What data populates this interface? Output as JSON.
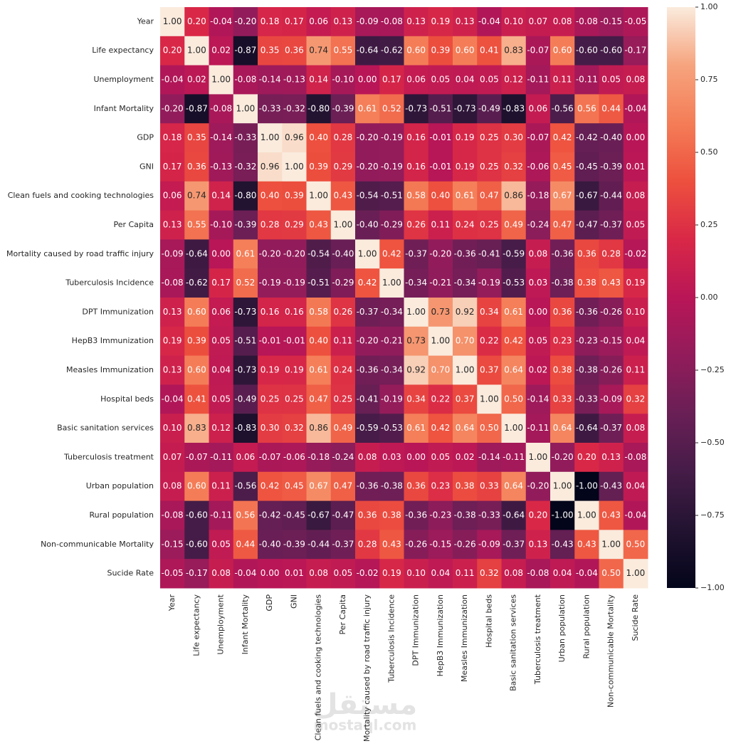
{
  "chart_data": {
    "type": "heatmap",
    "x_categories": [
      "Year",
      "Life expectancy",
      "Unemployment",
      "Infant Mortality",
      "GDP",
      "GNI",
      "Clean fuels and cooking technologies",
      "Per Capita",
      "Mortality caused by road traffic injury",
      "Tuberculosis Incidence",
      "DPT Immunization",
      "HepB3 Immunization",
      "Measles Immunization",
      "Hospital beds",
      "Basic sanitation services",
      "Tuberculosis treatment",
      "Urban population",
      "Rural population",
      "Non-communicable Mortality",
      "Sucide Rate"
    ],
    "y_categories": [
      "Year",
      "Life expectancy",
      "Unemployment",
      "Infant Mortality",
      "GDP",
      "GNI",
      "Clean fuels and cooking technologies",
      "Per Capita",
      "Mortality caused by road traffic injury",
      "Tuberculosis Incidence",
      "DPT Immunization",
      "HepB3 Immunization",
      "Measles Immunization",
      "Hospital beds",
      "Basic sanitation services",
      "Tuberculosis treatment",
      "Urban population",
      "Rural population",
      "Non-communicable Mortality",
      "Sucide Rate"
    ],
    "values": [
      [
        1,
        0.2,
        -0.04,
        -0.2,
        0.18,
        0.17,
        0.06,
        0.13,
        -0.09,
        -0.08,
        0.13,
        0.19,
        0.13,
        -0.04,
        0.1,
        0.07,
        0.08,
        -0.08,
        -0.15,
        -0.05
      ],
      [
        0.2,
        1,
        0.02,
        -0.87,
        0.35,
        0.36,
        0.74,
        0.55,
        -0.64,
        -0.62,
        0.6,
        0.39,
        0.6,
        0.41,
        0.83,
        -0.07,
        0.6,
        -0.6,
        -0.6,
        -0.17
      ],
      [
        -0.04,
        0.02,
        1,
        -0.08,
        -0.14,
        -0.13,
        0.14,
        -0.1,
        0,
        0.17,
        0.06,
        0.05,
        0.04,
        0.05,
        0.12,
        -0.11,
        0.11,
        -0.11,
        0.05,
        0.08
      ],
      [
        -0.2,
        -0.87,
        -0.08,
        1,
        -0.33,
        -0.32,
        -0.8,
        -0.39,
        0.61,
        0.52,
        -0.73,
        -0.51,
        -0.73,
        -0.49,
        -0.83,
        0.06,
        -0.56,
        0.56,
        0.44,
        -0.04
      ],
      [
        0.18,
        0.35,
        -0.14,
        -0.33,
        1,
        0.96,
        0.4,
        0.28,
        -0.2,
        -0.19,
        0.16,
        -0.01,
        0.19,
        0.25,
        0.3,
        -0.07,
        0.42,
        -0.42,
        -0.4,
        0
      ],
      [
        0.17,
        0.36,
        -0.13,
        -0.32,
        0.96,
        1,
        0.39,
        0.29,
        -0.2,
        -0.19,
        0.16,
        -0.01,
        0.19,
        0.25,
        0.32,
        -0.06,
        0.45,
        -0.45,
        -0.39,
        0.01
      ],
      [
        0.06,
        0.74,
        0.14,
        -0.8,
        0.4,
        0.39,
        1,
        0.43,
        -0.54,
        -0.51,
        0.58,
        0.4,
        0.61,
        0.47,
        0.86,
        -0.18,
        0.67,
        -0.67,
        -0.44,
        0.08
      ],
      [
        0.13,
        0.55,
        -0.1,
        -0.39,
        0.28,
        0.29,
        0.43,
        1,
        -0.4,
        -0.29,
        0.26,
        0.11,
        0.24,
        0.25,
        0.49,
        -0.24,
        0.47,
        -0.47,
        -0.37,
        0.05
      ],
      [
        -0.09,
        -0.64,
        0,
        0.61,
        -0.2,
        -0.2,
        -0.54,
        -0.4,
        1,
        0.42,
        -0.37,
        -0.2,
        -0.36,
        -0.41,
        -0.59,
        0.08,
        -0.36,
        0.36,
        0.28,
        -0.02
      ],
      [
        -0.08,
        -0.62,
        0.17,
        0.52,
        -0.19,
        -0.19,
        -0.51,
        -0.29,
        0.42,
        1,
        -0.34,
        -0.21,
        -0.34,
        -0.19,
        -0.53,
        0.03,
        -0.38,
        0.38,
        0.43,
        0.19
      ],
      [
        0.13,
        0.6,
        0.06,
        -0.73,
        0.16,
        0.16,
        0.58,
        0.26,
        -0.37,
        -0.34,
        1,
        0.73,
        0.92,
        0.34,
        0.61,
        0,
        0.36,
        -0.36,
        -0.26,
        0.1
      ],
      [
        0.19,
        0.39,
        0.05,
        -0.51,
        -0.01,
        -0.01,
        0.4,
        0.11,
        -0.2,
        -0.21,
        0.73,
        1,
        0.7,
        0.22,
        0.42,
        0.05,
        0.23,
        -0.23,
        -0.15,
        0.04
      ],
      [
        0.13,
        0.6,
        0.04,
        -0.73,
        0.19,
        0.19,
        0.61,
        0.24,
        -0.36,
        -0.34,
        0.92,
        0.7,
        1,
        0.37,
        0.64,
        0.02,
        0.38,
        -0.38,
        -0.26,
        0.11
      ],
      [
        -0.04,
        0.41,
        0.05,
        -0.49,
        0.25,
        0.25,
        0.47,
        0.25,
        -0.41,
        -0.19,
        0.34,
        0.22,
        0.37,
        1,
        0.5,
        -0.14,
        0.33,
        -0.33,
        -0.09,
        0.32
      ],
      [
        0.1,
        0.83,
        0.12,
        -0.83,
        0.3,
        0.32,
        0.86,
        0.49,
        -0.59,
        -0.53,
        0.61,
        0.42,
        0.64,
        0.5,
        1,
        -0.11,
        0.64,
        -0.64,
        -0.37,
        0.08
      ],
      [
        0.07,
        -0.07,
        -0.11,
        0.06,
        -0.07,
        -0.06,
        -0.18,
        -0.24,
        0.08,
        0.03,
        0,
        0.05,
        0.02,
        -0.14,
        -0.11,
        1,
        -0.2,
        0.2,
        0.13,
        -0.08
      ],
      [
        0.08,
        0.6,
        0.11,
        -0.56,
        0.42,
        0.45,
        0.67,
        0.47,
        -0.36,
        -0.38,
        0.36,
        0.23,
        0.38,
        0.33,
        0.64,
        -0.2,
        1,
        -1,
        -0.43,
        0.04
      ],
      [
        -0.08,
        -0.6,
        -0.11,
        0.56,
        -0.42,
        -0.45,
        -0.67,
        -0.47,
        0.36,
        0.38,
        -0.36,
        -0.23,
        -0.38,
        -0.33,
        -0.64,
        0.2,
        -1,
        1,
        0.43,
        -0.04
      ],
      [
        -0.15,
        -0.6,
        0.05,
        0.44,
        -0.4,
        -0.39,
        -0.44,
        -0.37,
        0.28,
        0.43,
        -0.26,
        -0.15,
        -0.26,
        -0.09,
        -0.37,
        0.13,
        -0.43,
        0.43,
        1,
        0.5
      ],
      [
        -0.05,
        -0.17,
        0.08,
        -0.04,
        0,
        0.01,
        0.08,
        0.05,
        -0.02,
        0.19,
        0.1,
        0.04,
        0.11,
        0.32,
        0.08,
        -0.08,
        0.04,
        -0.04,
        0.5,
        1
      ]
    ],
    "value_labels": [
      [
        "1.00",
        "0.20",
        "-0.04",
        "-0.20",
        "0.18",
        "0.17",
        "0.06",
        "0.13",
        "-0.09",
        "-0.08",
        "0.13",
        "0.19",
        "0.13",
        "-0.04",
        "0.10",
        "0.07",
        "0.08",
        "-0.08",
        "-0.15",
        "-0.05"
      ],
      [
        "0.20",
        "1.00",
        "0.02",
        "-0.87",
        "0.35",
        "0.36",
        "0.74",
        "0.55",
        "-0.64",
        "-0.62",
        "0.60",
        "0.39",
        "0.60",
        "0.41",
        "0.83",
        "-0.07",
        "0.60",
        "-0.60",
        "-0.60",
        "-0.17"
      ],
      [
        "-0.04",
        "0.02",
        "1.00",
        "-0.08",
        "-0.14",
        "-0.13",
        "0.14",
        "-0.10",
        "0.00",
        "0.17",
        "0.06",
        "0.05",
        "0.04",
        "0.05",
        "0.12",
        "-0.11",
        "0.11",
        "-0.11",
        "0.05",
        "0.08"
      ],
      [
        "-0.20",
        "-0.87",
        "-0.08",
        "1.00",
        "-0.33",
        "-0.32",
        "-0.80",
        "-0.39",
        "0.61",
        "0.52",
        "-0.73",
        "-0.51",
        "-0.73",
        "-0.49",
        "-0.83",
        "0.06",
        "-0.56",
        "0.56",
        "0.44",
        "-0.04"
      ],
      [
        "0.18",
        "0.35",
        "-0.14",
        "-0.33",
        "1.00",
        "0.96",
        "0.40",
        "0.28",
        "-0.20",
        "-0.19",
        "0.16",
        "-0.01",
        "0.19",
        "0.25",
        "0.30",
        "-0.07",
        "0.42",
        "-0.42",
        "-0.40",
        "0.00"
      ],
      [
        "0.17",
        "0.36",
        "-0.13",
        "-0.32",
        "0.96",
        "1.00",
        "0.39",
        "0.29",
        "-0.20",
        "-0.19",
        "0.16",
        "-0.01",
        "0.19",
        "0.25",
        "0.32",
        "-0.06",
        "0.45",
        "-0.45",
        "-0.39",
        "0.01"
      ],
      [
        "0.06",
        "0.74",
        "0.14",
        "-0.80",
        "0.40",
        "0.39",
        "1.00",
        "0.43",
        "-0.54",
        "-0.51",
        "0.58",
        "0.40",
        "0.61",
        "0.47",
        "0.86",
        "-0.18",
        "0.67",
        "-0.67",
        "-0.44",
        "0.08"
      ],
      [
        "0.13",
        "0.55",
        "-0.10",
        "-0.39",
        "0.28",
        "0.29",
        "0.43",
        "1.00",
        "-0.40",
        "-0.29",
        "0.26",
        "0.11",
        "0.24",
        "0.25",
        "0.49",
        "-0.24",
        "0.47",
        "-0.47",
        "-0.37",
        "0.05"
      ],
      [
        "-0.09",
        "-0.64",
        "0.00",
        "0.61",
        "-0.20",
        "-0.20",
        "-0.54",
        "-0.40",
        "1.00",
        "0.42",
        "-0.37",
        "-0.20",
        "-0.36",
        "-0.41",
        "-0.59",
        "0.08",
        "-0.36",
        "0.36",
        "0.28",
        "-0.02"
      ],
      [
        "-0.08",
        "-0.62",
        "0.17",
        "0.52",
        "-0.19",
        "-0.19",
        "-0.51",
        "-0.29",
        "0.42",
        "1.00",
        "-0.34",
        "-0.21",
        "-0.34",
        "-0.19",
        "-0.53",
        "0.03",
        "-0.38",
        "0.38",
        "0.43",
        "0.19"
      ],
      [
        "0.13",
        "0.60",
        "0.06",
        "-0.73",
        "0.16",
        "0.16",
        "0.58",
        "0.26",
        "-0.37",
        "-0.34",
        "1.00",
        "0.73",
        "0.92",
        "0.34",
        "0.61",
        "0.00",
        "0.36",
        "-0.36",
        "-0.26",
        "0.10"
      ],
      [
        "0.19",
        "0.39",
        "0.05",
        "-0.51",
        "-0.01",
        "-0.01",
        "0.40",
        "0.11",
        "-0.20",
        "-0.21",
        "0.73",
        "1.00",
        "0.70",
        "0.22",
        "0.42",
        "0.05",
        "0.23",
        "-0.23",
        "-0.15",
        "0.04"
      ],
      [
        "0.13",
        "0.60",
        "0.04",
        "-0.73",
        "0.19",
        "0.19",
        "0.61",
        "0.24",
        "-0.36",
        "-0.34",
        "0.92",
        "0.70",
        "1.00",
        "0.37",
        "0.64",
        "0.02",
        "0.38",
        "-0.38",
        "-0.26",
        "0.11"
      ],
      [
        "-0.04",
        "0.41",
        "0.05",
        "-0.49",
        "0.25",
        "0.25",
        "0.47",
        "0.25",
        "-0.41",
        "-0.19",
        "0.34",
        "0.22",
        "0.37",
        "1.00",
        "0.50",
        "-0.14",
        "0.33",
        "-0.33",
        "-0.09",
        "0.32"
      ],
      [
        "0.10",
        "0.83",
        "0.12",
        "-0.83",
        "0.30",
        "0.32",
        "0.86",
        "0.49",
        "-0.59",
        "-0.53",
        "0.61",
        "0.42",
        "0.64",
        "0.50",
        "1.00",
        "-0.11",
        "0.64",
        "-0.64",
        "-0.37",
        "0.08"
      ],
      [
        "0.07",
        "-0.07",
        "-0.11",
        "0.06",
        "-0.07",
        "-0.06",
        "-0.18",
        "-0.24",
        "0.08",
        "0.03",
        "0.00",
        "0.05",
        "0.02",
        "-0.14",
        "-0.11",
        "1.00",
        "-0.20",
        "0.20",
        "0.13",
        "-0.08"
      ],
      [
        "0.08",
        "0.60",
        "0.11",
        "-0.56",
        "0.42",
        "0.45",
        "0.67",
        "0.47",
        "-0.36",
        "-0.38",
        "0.36",
        "0.23",
        "0.38",
        "0.33",
        "0.64",
        "-0.20",
        "1.00",
        "-1.00",
        "-0.43",
        "0.04"
      ],
      [
        "-0.08",
        "-0.60",
        "-0.11",
        "0.56",
        "-0.42",
        "-0.45",
        "-0.67",
        "-0.47",
        "0.36",
        "0.38",
        "-0.36",
        "-0.23",
        "-0.38",
        "-0.33",
        "-0.64",
        "0.20",
        "-1.00",
        "1.00",
        "0.43",
        "-0.04"
      ],
      [
        "-0.15",
        "-0.60",
        "0.05",
        "0.44",
        "-0.40",
        "-0.39",
        "-0.44",
        "-0.37",
        "0.28",
        "0.43",
        "-0.26",
        "-0.15",
        "-0.26",
        "-0.09",
        "-0.37",
        "0.13",
        "-0.43",
        "0.43",
        "1.00",
        "0.50"
      ],
      [
        "-0.05",
        "-0.17",
        "0.08",
        "-0.04",
        "0.00",
        "0.01",
        "0.08",
        "0.05",
        "-0.02",
        "0.19",
        "0.10",
        "0.04",
        "0.11",
        "0.32",
        "0.08",
        "-0.08",
        "0.04",
        "-0.04",
        "0.50",
        "1.00"
      ]
    ],
    "colorbar": {
      "lim": [
        -1,
        1
      ],
      "ticks": [
        {
          "value": 1,
          "label": "1.00"
        },
        {
          "value": 0.75,
          "label": "0.75"
        },
        {
          "value": 0.5,
          "label": "0.50"
        },
        {
          "value": 0.25,
          "label": "0.25"
        },
        {
          "value": 0,
          "label": "0.00"
        },
        {
          "value": -0.25,
          "label": "−0.25"
        },
        {
          "value": -0.5,
          "label": "−0.50"
        },
        {
          "value": -0.75,
          "label": "−0.75"
        },
        {
          "value": -1,
          "label": "−1.00"
        }
      ],
      "colors": [
        "#03051a",
        "#221331",
        "#451c47",
        "#691f55",
        "#921c5b",
        "#b91657",
        "#d92847",
        "#ed503e",
        "#f47d57",
        "#f6a47e",
        "#faebdd"
      ]
    },
    "watermark_logo": "مستقل",
    "watermark_url": "mostaql.com"
  }
}
